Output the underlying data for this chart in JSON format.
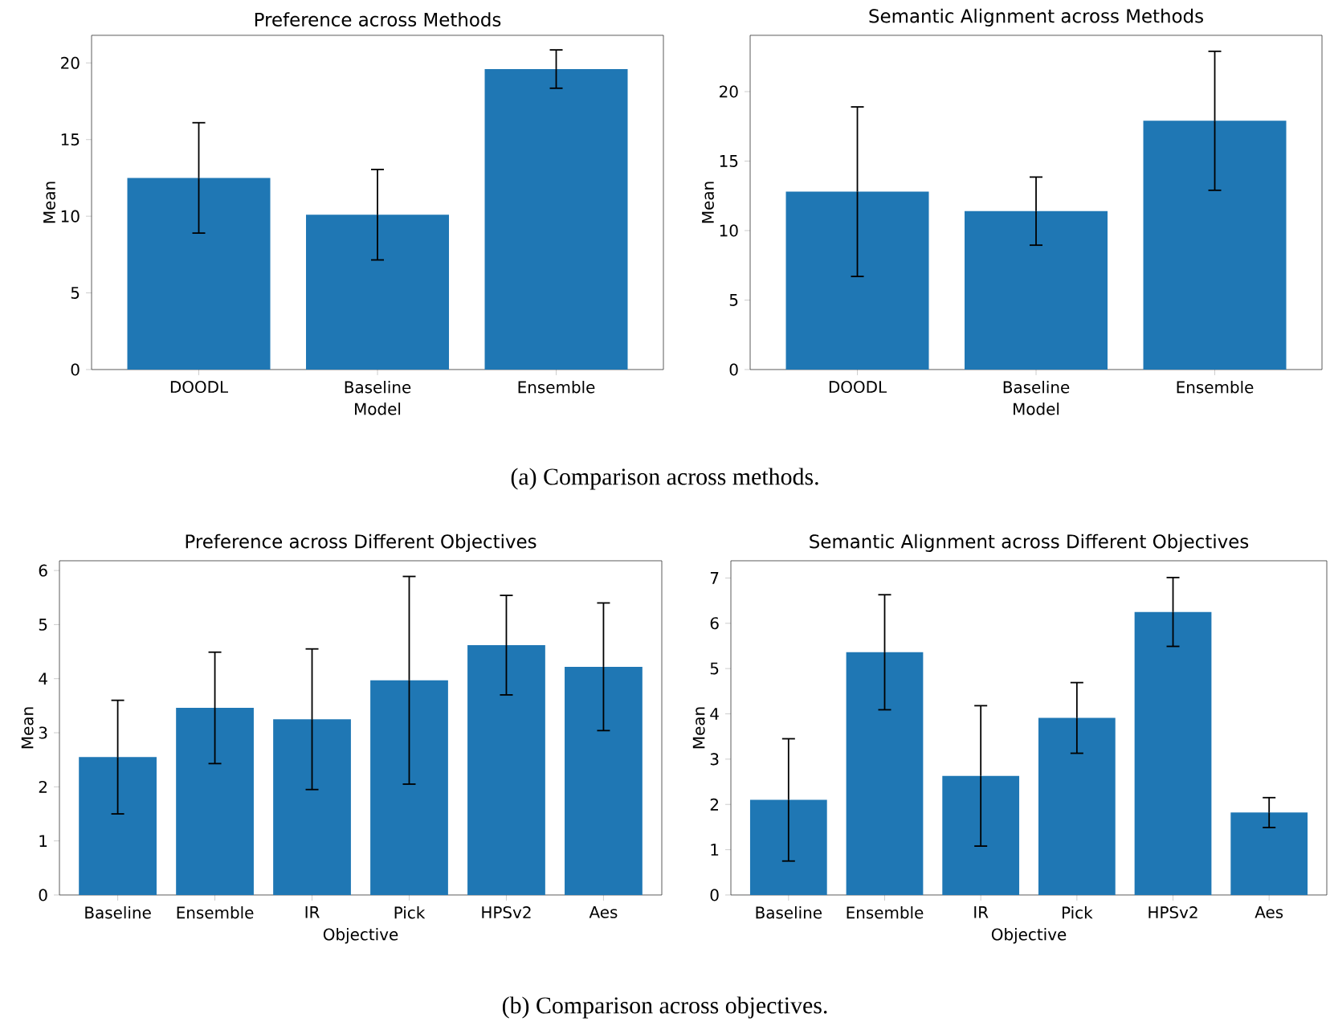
{
  "chart_data": [
    {
      "type": "bar",
      "title": "Preference across Methods",
      "xlabel": "Model",
      "ylabel": "Mean",
      "categories": [
        "DOODL",
        "Baseline",
        "Ensemble"
      ],
      "values": [
        12.5,
        10.1,
        19.6
      ],
      "errors": [
        3.6,
        2.95,
        1.25
      ],
      "color": "#1f77b4",
      "ylim": [
        0,
        21.8
      ],
      "yticks": [
        0,
        5,
        10,
        15,
        20
      ],
      "annotations": [
        "(a) Comparison across methods."
      ]
    },
    {
      "type": "bar",
      "title": "Semantic Alignment across Methods",
      "xlabel": "Model",
      "ylabel": "Mean",
      "categories": [
        "DOODL",
        "Baseline",
        "Ensemble"
      ],
      "values": [
        12.8,
        11.4,
        17.9
      ],
      "errors": [
        6.1,
        2.45,
        5.0
      ],
      "color": "#1f77b4",
      "ylim": [
        0,
        24.05
      ],
      "yticks": [
        0,
        5,
        10,
        15,
        20
      ]
    },
    {
      "type": "bar",
      "title": "Preference across Different Objectives",
      "xlabel": "Objective",
      "ylabel": "Mean",
      "categories": [
        "Baseline",
        "Ensemble",
        "IR",
        "Pick",
        "HPSv2",
        "Aes"
      ],
      "values": [
        2.55,
        3.46,
        3.25,
        3.97,
        4.62,
        4.22
      ],
      "errors": [
        1.05,
        1.03,
        1.3,
        1.92,
        0.92,
        1.18
      ],
      "color": "#1f77b4",
      "ylim": [
        0,
        6.18
      ],
      "yticks": [
        0,
        1,
        2,
        3,
        4,
        5,
        6
      ],
      "annotations": [
        "(b) Comparison across objectives."
      ]
    },
    {
      "type": "bar",
      "title": "Semantic Alignment across Different Objectives",
      "xlabel": "Objective",
      "ylabel": "Mean",
      "categories": [
        "Baseline",
        "Ensemble",
        "IR",
        "Pick",
        "HPSv2",
        "Aes"
      ],
      "values": [
        2.1,
        5.36,
        2.63,
        3.91,
        6.25,
        1.82
      ],
      "errors": [
        1.35,
        1.27,
        1.55,
        0.78,
        0.76,
        0.33
      ],
      "color": "#1f77b4",
      "ylim": [
        0,
        7.38
      ],
      "yticks": [
        0,
        1,
        2,
        3,
        4,
        5,
        6,
        7
      ]
    }
  ]
}
